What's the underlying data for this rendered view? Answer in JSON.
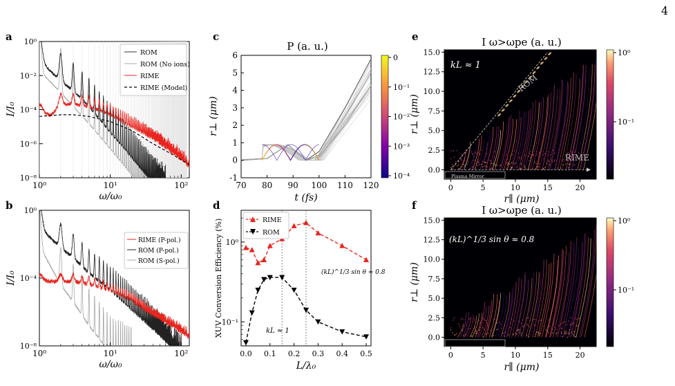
{
  "page_number": "4",
  "panels": {
    "a": {
      "letter": "a",
      "xlabel": "ω/ω₀",
      "ylabel": "I/I₀",
      "xticks": [
        "10⁰",
        "10¹",
        "10²"
      ],
      "yticks": [
        "10⁰",
        "10⁻²",
        "10⁻⁴",
        "10⁻⁶",
        "10⁻⁸"
      ],
      "legend": [
        "ROM",
        "ROM (No ions)",
        "RIME",
        "RIME (Model)"
      ]
    },
    "b": {
      "letter": "b",
      "xlabel": "ω/ω₀",
      "ylabel": "I/I₀",
      "xticks": [
        "10⁰",
        "10¹",
        "10²"
      ],
      "yticks": [
        "10⁰",
        "10⁻⁴",
        "10⁻⁸"
      ],
      "legend": [
        "RIME (P-pol.)",
        "ROM (P-pol.)",
        "ROM (S-pol.)"
      ]
    },
    "c": {
      "letter": "c",
      "title": "P (a. u.)",
      "xlabel": "t (fs)",
      "ylabel": "r⊥ (μm)",
      "xticks": [
        "70",
        "80",
        "90",
        "100",
        "110",
        "120"
      ],
      "yticks": [
        "6",
        "5",
        "4",
        "3",
        "2",
        "1",
        "0",
        "-1"
      ],
      "cbar_ticks": [
        "0",
        "10⁻¹",
        "10⁻²",
        "10⁻³",
        "10⁻⁴"
      ]
    },
    "d": {
      "letter": "d",
      "xlabel": "L/λ₀",
      "ylabel": "XUV Conversion Efficiency (%)",
      "xticks": [
        "0.0",
        "0.1",
        "0.2",
        "0.3",
        "0.4",
        "0.5"
      ],
      "yticks": [
        "10⁰",
        "10⁻¹"
      ],
      "annotation_kl": "kL ≈ 1",
      "annotation_sin": "(kL)^1/3 sin θ ≈ 0.8",
      "legend": [
        "RIME",
        "ROM"
      ]
    },
    "e": {
      "letter": "e",
      "title": "I ω>ωpe (a. u.)",
      "xlabel": "r∥ (μm)",
      "ylabel": "r⊥ (μm)",
      "xticks": [
        "0",
        "5",
        "10",
        "15",
        "20"
      ],
      "yticks": [
        "15.0",
        "12.5",
        "10.0",
        "7.5",
        "5.0",
        "2.5",
        "0.0"
      ],
      "annotation": "kL ≈ 1",
      "label_rom": "ROM",
      "label_rime": "RIME",
      "label_mirror": "Plasma Mirror",
      "cbar_ticks": [
        "10⁰",
        "10⁻¹"
      ]
    },
    "f": {
      "letter": "f",
      "title": "I ω>ωpe (a. u.)",
      "xlabel": "r∥ (μm)",
      "ylabel": "r⊥ (μm)",
      "xticks": [
        "0",
        "5",
        "10",
        "15",
        "20"
      ],
      "yticks": [
        "15.0",
        "12.5",
        "10.0",
        "7.5",
        "5.0",
        "2.5",
        "0.0"
      ],
      "annotation": "(kL)^1/3 sin θ ≈ 0.8",
      "cbar_ticks": [
        "10⁰",
        "10⁻¹"
      ]
    }
  },
  "colors": {
    "rime": "#e8261f",
    "rom": "#000000",
    "rom_light": "#9a9a9a",
    "model": "#000000",
    "magma_bg": "#000004"
  },
  "chart_data": [
    {
      "type": "line",
      "panel": "a",
      "xlabel": "ω/ω₀",
      "ylabel": "I/I₀",
      "xscale": "log",
      "yscale": "log",
      "xlim": [
        1,
        130
      ],
      "ylim": [
        1e-08,
        1
      ],
      "series": [
        {
          "name": "ROM",
          "x": [
            1,
            2,
            3,
            5,
            10,
            20,
            40,
            60
          ],
          "y": [
            0.5,
            0.03,
            0.008,
            0.001,
            3e-05,
            1e-06,
            3e-08,
            1e-08
          ]
        },
        {
          "name": "ROM (No ions)",
          "x": [
            1,
            2,
            3,
            5,
            10,
            20,
            40
          ],
          "y": [
            0.4,
            0.02,
            0.003,
            0.0003,
            1e-05,
            3e-07,
            1e-08
          ]
        },
        {
          "name": "RIME",
          "x": [
            1,
            1.5,
            2,
            3,
            5,
            10,
            20,
            40,
            80,
            130
          ],
          "y": [
            0.0001,
            0.0001,
            0.0004,
            0.0004,
            0.0003,
            0.0001,
            2e-05,
            4e-06,
            5e-07,
            8e-08
          ]
        },
        {
          "name": "RIME (Model)",
          "x": [
            1,
            2,
            3,
            5,
            10,
            20,
            40,
            80,
            130
          ],
          "y": [
            4e-05,
            5e-05,
            5e-05,
            4e-05,
            2e-05,
            6e-06,
            1e-06,
            2e-07,
            6e-08
          ]
        }
      ]
    },
    {
      "type": "line",
      "panel": "b",
      "xlabel": "ω/ω₀",
      "ylabel": "I/I₀",
      "xscale": "log",
      "yscale": "log",
      "xlim": [
        1,
        130
      ],
      "ylim": [
        1e-08,
        1
      ],
      "series": [
        {
          "name": "RIME (P-pol.)",
          "x": [
            1,
            2,
            3,
            5,
            10,
            20,
            40,
            80,
            130
          ],
          "y": [
            0.0001,
            0.0001,
            0.0001,
            7e-05,
            3e-05,
            8e-06,
            1e-06,
            2e-07,
            5e-08
          ]
        },
        {
          "name": "ROM (P-pol.)",
          "x": [
            1,
            2,
            3,
            5,
            10,
            20,
            40,
            80,
            100
          ],
          "y": [
            0.5,
            0.03,
            0.008,
            0.001,
            0.0001,
            7e-06,
            5e-07,
            3e-08,
            1e-08
          ]
        },
        {
          "name": "ROM (S-pol.)",
          "x": [
            1,
            2,
            3,
            5,
            10,
            20
          ],
          "y": [
            0.1,
            0.0005,
            5e-05,
            2e-06,
            5e-08,
            1e-08
          ]
        }
      ]
    },
    {
      "type": "line",
      "panel": "c",
      "title": "P (a. u.)",
      "xlabel": "t (fs)",
      "ylabel": "r⊥ (μm)",
      "xlim": [
        70,
        120
      ],
      "ylim": [
        -1,
        6
      ],
      "note_series": "electron trajectories",
      "series": [
        {
          "name": "",
          "x": [
            70,
            80,
            88,
            95,
            100,
            110,
            120
          ],
          "y": [
            0,
            0.1,
            0.9,
            0,
            0.5,
            3,
            5.8
          ]
        },
        {
          "name": "",
          "x": [
            70,
            80,
            88,
            95,
            100,
            110,
            120
          ],
          "y": [
            0,
            0.1,
            0.9,
            0,
            0.3,
            2.5,
            5
          ]
        },
        {
          "name": "",
          "x": [
            70,
            80,
            88,
            95,
            100,
            110,
            120
          ],
          "y": [
            0,
            0.1,
            0.9,
            0,
            0.2,
            2,
            4.3
          ]
        }
      ]
    },
    {
      "type": "line",
      "panel": "d",
      "xlabel": "L/λ₀",
      "ylabel": "XUV Conversion Efficiency (%)",
      "xlim": [
        -0.02,
        0.52
      ],
      "yscale": "log",
      "ylim": [
        0.05,
        2.5
      ],
      "series": [
        {
          "name": "RIME",
          "x": [
            0,
            0.025,
            0.05,
            0.075,
            0.1,
            0.15,
            0.2,
            0.25,
            0.3,
            0.4,
            0.5
          ],
          "y": [
            0.85,
            0.8,
            0.55,
            0.6,
            0.9,
            1.1,
            1.6,
            1.75,
            1.3,
            0.9,
            0.6
          ]
        },
        {
          "name": "ROM",
          "x": [
            0,
            0.025,
            0.05,
            0.075,
            0.1,
            0.15,
            0.2,
            0.25,
            0.3,
            0.4,
            0.5
          ],
          "y": [
            0.055,
            0.13,
            0.25,
            0.34,
            0.36,
            0.36,
            0.25,
            0.14,
            0.1,
            0.075,
            0.065
          ]
        }
      ],
      "vlines": [
        0.15,
        0.25
      ]
    }
  ]
}
